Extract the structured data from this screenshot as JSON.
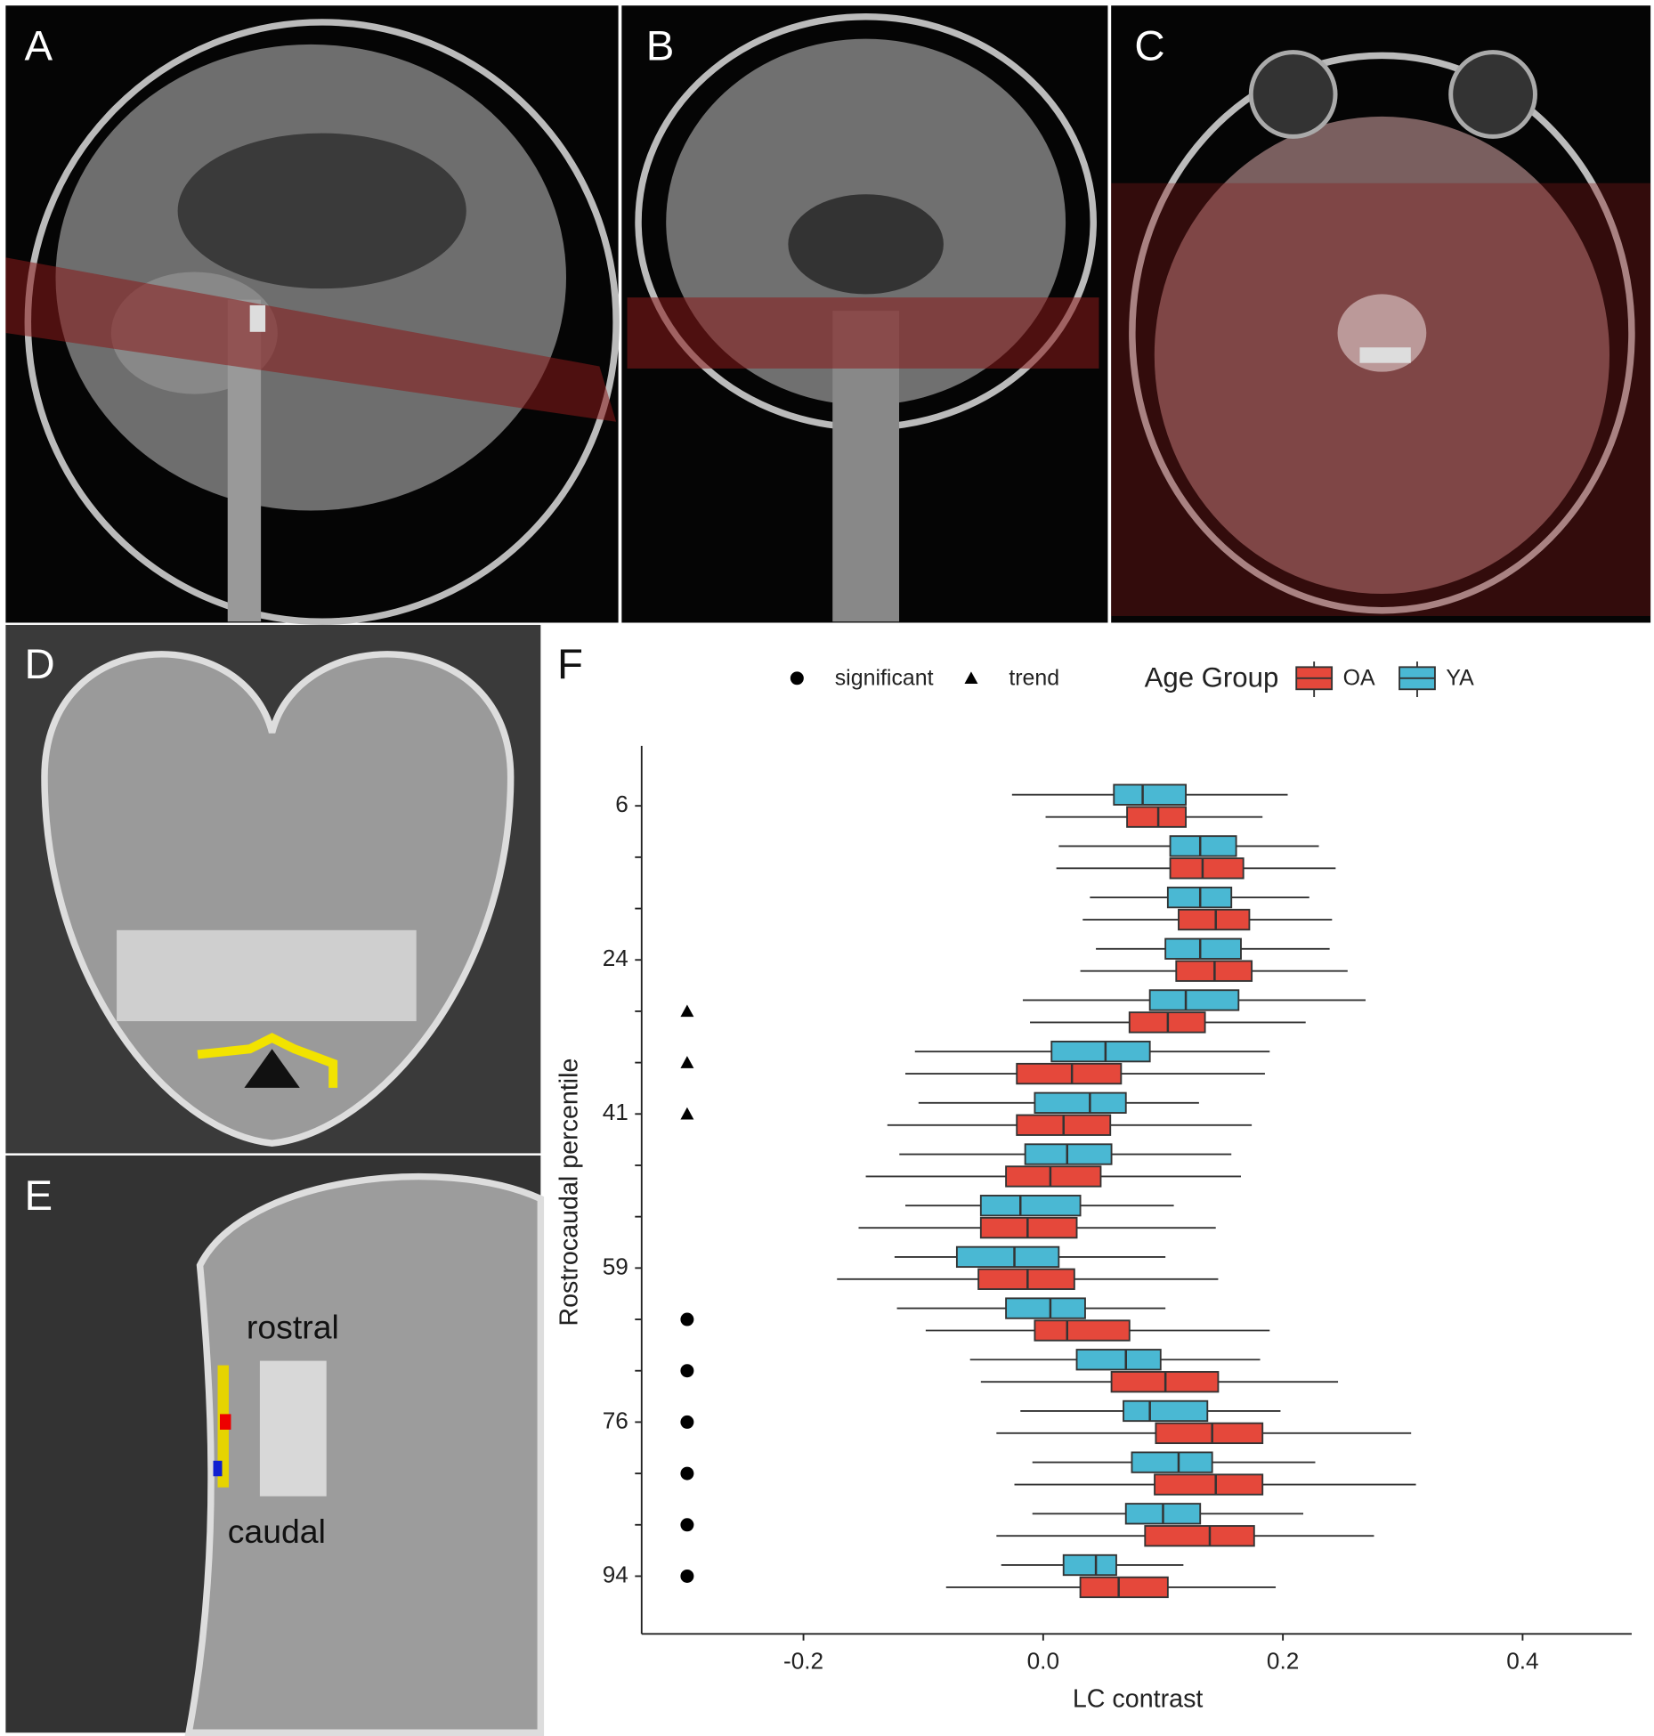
{
  "panel_labels": [
    "A",
    "B",
    "C",
    "D",
    "E",
    "F"
  ],
  "annotations": [
    "rostral",
    "caudal"
  ],
  "chart_data": {
    "type": "boxplot",
    "orientation": "horizontal",
    "xlabel": "LC contrast",
    "ylabel": "Rostrocaudal percentile",
    "categories": [
      6,
      null,
      null,
      24,
      null,
      null,
      41,
      null,
      null,
      59,
      null,
      null,
      76,
      null,
      null,
      94
    ],
    "xlim": [
      -0.335,
      0.491
    ],
    "xticks": [
      -0.2,
      {
        "value": 0,
        "label": "0.0"
      },
      0.2,
      0.4
    ],
    "legend_title": "Age Group",
    "series": [
      {
        "name": "OA",
        "color": "#e5483b",
        "values": [
          [
            0.002,
            0.07,
            0.096,
            0.119,
            0.183
          ],
          [
            0.011,
            0.106,
            0.133,
            0.167,
            0.244
          ],
          [
            0.033,
            0.113,
            0.144,
            0.172,
            0.241
          ],
          [
            0.031,
            0.111,
            0.143,
            0.174,
            0.254
          ],
          [
            -0.011,
            0.072,
            0.104,
            0.135,
            0.219
          ],
          [
            -0.115,
            -0.022,
            0.024,
            0.065,
            0.185
          ],
          [
            -0.13,
            -0.022,
            0.017,
            0.056,
            0.174
          ],
          [
            -0.148,
            -0.031,
            0.006,
            0.048,
            0.165
          ],
          [
            -0.154,
            -0.052,
            -0.013,
            0.028,
            0.144
          ],
          [
            -0.172,
            -0.054,
            -0.013,
            0.026,
            0.146
          ],
          [
            -0.098,
            -0.007,
            0.02,
            0.072,
            0.189
          ],
          [
            -0.052,
            0.057,
            0.102,
            0.146,
            0.246
          ],
          [
            -0.039,
            0.094,
            0.141,
            0.183,
            0.307
          ],
          [
            -0.024,
            0.093,
            0.144,
            0.183,
            0.311
          ],
          [
            -0.039,
            0.085,
            0.139,
            0.176,
            0.276
          ],
          [
            -0.081,
            0.031,
            0.063,
            0.104,
            0.194
          ]
        ]
      },
      {
        "name": "YA",
        "color": "#4ab8d3",
        "values": [
          [
            -0.026,
            0.059,
            0.083,
            0.119,
            0.204
          ],
          [
            0.013,
            0.106,
            0.131,
            0.161,
            0.23
          ],
          [
            0.039,
            0.104,
            0.131,
            0.157,
            0.222
          ],
          [
            0.044,
            0.102,
            0.131,
            0.165,
            0.239
          ],
          [
            -0.017,
            0.089,
            0.119,
            0.163,
            0.269
          ],
          [
            -0.107,
            0.007,
            0.052,
            0.089,
            0.189
          ],
          [
            -0.104,
            -0.007,
            0.039,
            0.069,
            0.13
          ],
          [
            -0.12,
            -0.015,
            0.02,
            0.057,
            0.157
          ],
          [
            -0.115,
            -0.052,
            -0.019,
            0.031,
            0.109
          ],
          [
            -0.124,
            -0.072,
            -0.024,
            0.013,
            0.102
          ],
          [
            -0.122,
            -0.031,
            0.006,
            0.035,
            0.102
          ],
          [
            -0.061,
            0.028,
            0.069,
            0.098,
            0.181
          ],
          [
            -0.019,
            0.067,
            0.089,
            0.137,
            0.198
          ],
          [
            -0.009,
            0.074,
            0.113,
            0.141,
            0.227
          ],
          [
            -0.009,
            0.069,
            0.1,
            0.131,
            0.217
          ],
          [
            -0.035,
            0.017,
            0.044,
            0.061,
            0.117
          ]
        ]
      }
    ],
    "marker_legend": [
      {
        "name": "significant",
        "shape": "circle"
      },
      {
        "name": "trend",
        "shape": "triangle"
      }
    ],
    "markers": [
      null,
      null,
      null,
      null,
      1,
      1,
      1,
      null,
      null,
      null,
      0,
      0,
      0,
      0,
      0,
      0
    ]
  }
}
